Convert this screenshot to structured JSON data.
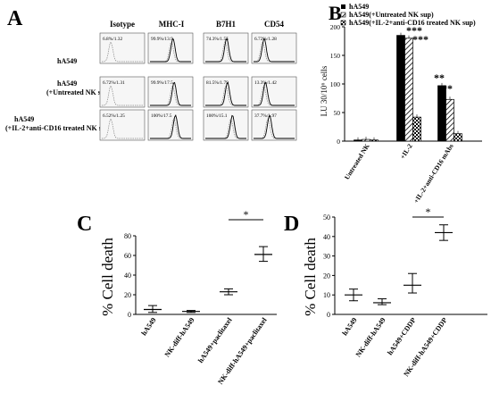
{
  "panel_letters": [
    "A",
    "B",
    "C",
    "D"
  ],
  "panelA": {
    "columns": [
      "Isotype",
      "MHC-I",
      "B7H1",
      "CD54"
    ],
    "rows": [
      {
        "label_lines": [
          "hA549"
        ],
        "values": [
          "6.8%/1.32",
          "99.9%/13.9",
          "74.3%/1.55",
          "6.72%/1.28"
        ]
      },
      {
        "label_lines": [
          "hA549",
          "(+Untreated NK sup)"
        ],
        "values": [
          "6.72%/1.31",
          "99.9%/17.5",
          "81.5%/1.79",
          "13.3%/1.42"
        ]
      },
      {
        "label_lines": [
          "hA549",
          "(+IL-2+anti-CD16 treated NK sup)"
        ],
        "values": [
          "6.52%/1.25",
          "100%/17.5",
          "100%/15.1",
          "37.7%/1.97"
        ]
      }
    ]
  },
  "chart_data": [
    {
      "panel": "B",
      "type": "bar",
      "categories": [
        "Untreated NK",
        "+IL-2",
        "+IL-2+anti-CD16 mAbs"
      ],
      "series": [
        {
          "name": "hA549",
          "values": [
            2,
            185,
            97
          ],
          "fill": "solid"
        },
        {
          "name": "hA549(+Untreated NK sup)",
          "values": [
            3,
            180,
            73
          ],
          "fill": "hatch"
        },
        {
          "name": "hA549(+IL-2+anti-CD16 treated NK sup)",
          "values": [
            2,
            42,
            13
          ],
          "fill": "check"
        }
      ],
      "ylabel": "LU 30/10⁶ cells",
      "ylim": [
        0,
        200
      ],
      "yticks": [
        "0",
        "50",
        "100",
        "150",
        "200"
      ],
      "annotations": [
        "***",
        "***",
        "**",
        "**"
      ],
      "legend_position": "top-right"
    },
    {
      "panel": "C",
      "type": "scatter",
      "categories": [
        "hA549",
        "NK-diff-hA549",
        "hA549+paclitaxel",
        "NK-diff-hA549+paclitaxel"
      ],
      "means": [
        5,
        3,
        23,
        61
      ],
      "err_low": [
        2,
        2,
        20,
        54
      ],
      "err_high": [
        9,
        4,
        26,
        69
      ],
      "ylabel": "% Cell death",
      "ylim": [
        0,
        80
      ],
      "yticks": [
        "0",
        "20",
        "40",
        "60",
        "80"
      ],
      "annotation": "*",
      "grid": false
    },
    {
      "panel": "D",
      "type": "scatter",
      "categories": [
        "hA549",
        "NK-diff-hA549",
        "hA549+CDDP",
        "NK-diff-hA549+CDDP"
      ],
      "means": [
        10,
        6,
        15,
        42
      ],
      "err_low": [
        7,
        5,
        11,
        38
      ],
      "err_high": [
        13,
        8,
        21,
        46
      ],
      "ylabel": "% Cell death",
      "ylim": [
        0,
        50
      ],
      "yticks": [
        "0",
        "10",
        "20",
        "30",
        "40",
        "50"
      ],
      "annotation": "*",
      "grid": false
    }
  ]
}
